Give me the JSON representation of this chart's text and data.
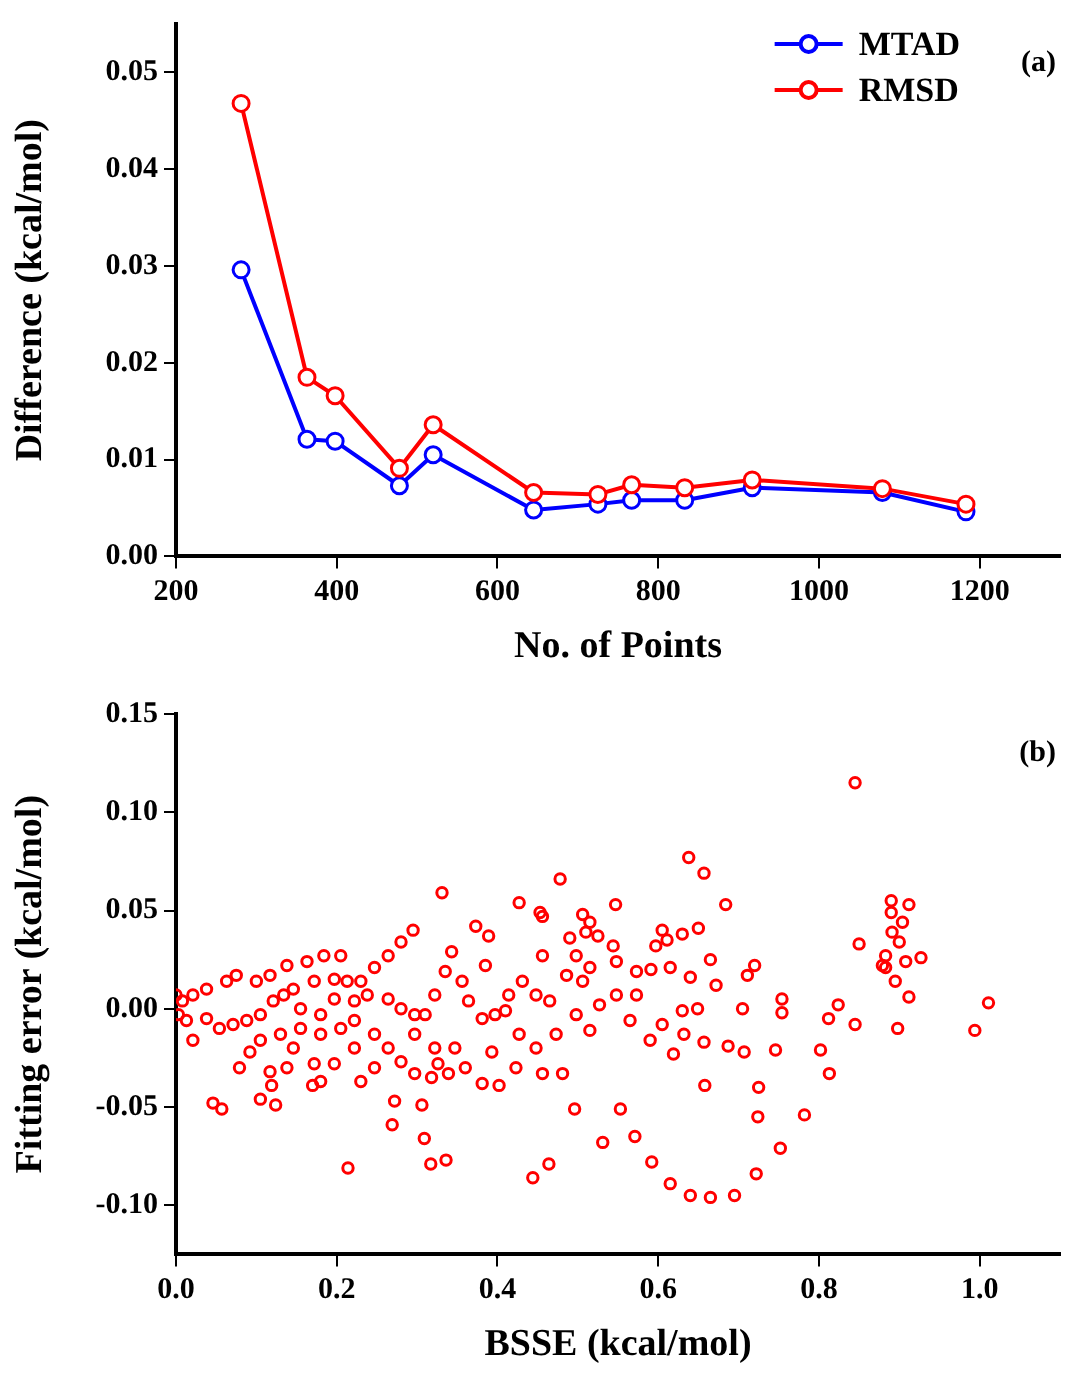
{
  "chart_data": [
    {
      "type": "line",
      "xlabel": "No. of Points",
      "ylabel": "Difference (kcal/mol)",
      "annotations": [
        "(a)"
      ],
      "x": [
        281,
        363,
        398,
        478,
        520,
        645,
        725,
        767,
        833,
        917,
        1079,
        1183
      ],
      "series": [
        {
          "name": "MTAD",
          "color": "#0000ff",
          "values": [
            0.0296,
            0.0121,
            0.0119,
            0.0073,
            0.0105,
            0.0048,
            0.0054,
            0.0058,
            0.0058,
            0.0071,
            0.0066,
            0.0046
          ]
        },
        {
          "name": "RMSD",
          "color": "#ff0000",
          "values": [
            0.0468,
            0.0185,
            0.0166,
            0.0091,
            0.0136,
            0.0066,
            0.0064,
            0.0074,
            0.0071,
            0.0079,
            0.007,
            0.0054
          ]
        }
      ],
      "xlim": [
        200,
        1300
      ],
      "xticks": [
        200,
        400,
        600,
        800,
        1000,
        1200
      ],
      "ylim": [
        0,
        0.055
      ],
      "yticks": [
        {
          "value": 0,
          "label": "0.00"
        },
        {
          "value": 0.01,
          "label": "0.01"
        },
        {
          "value": 0.02,
          "label": "0.02"
        },
        {
          "value": 0.03,
          "label": "0.03"
        },
        {
          "value": 0.04,
          "label": "0.04"
        },
        {
          "value": 0.05,
          "label": "0.05"
        }
      ],
      "grid": false,
      "legend": "top right",
      "marker": "circle",
      "line_style": "solid"
    },
    {
      "type": "scatter",
      "xlabel": "BSSE (kcal/mol)",
      "ylabel": "Fitting error (kcal/mol)",
      "annotations": [
        "(b)"
      ],
      "series": [
        {
          "color": "#ff0000",
          "x": [
            0.845,
            0.638,
            0.657,
            0.478,
            0.331,
            0.547,
            0.684,
            0.89,
            0.912,
            0.85,
            0.927,
            1.011,
            0.994,
            0.898,
            0.845,
            0.824,
            0.812,
            0.802,
            0.813,
            0.782,
            0.752,
            0.722,
            0.695,
            0.665,
            0.64,
            0.615,
            0.592,
            0.571,
            0.553,
            0.496,
            0.531,
            0.464,
            0.444,
            0.336,
            0.317,
            0.309,
            0.214,
            0.269,
            0.272,
            0.306,
            0.046,
            0.057,
            0.105,
            0.124,
            0.119,
            0.17,
            0.079,
            0.18,
            0.481,
            0.658,
            0.724,
            0.725,
            0.746,
            0.707,
            0.687,
            0.619,
            0.657,
            0.754,
            0.754,
            0.705,
            0.72,
            0.711,
            0.672,
            0.665,
            0.65,
            0.63,
            0.605,
            0.611,
            0.597,
            0.591,
            0.615,
            0.64,
            0.649,
            0.63,
            0.632,
            0.605,
            0.59,
            0.565,
            0.548,
            0.527,
            0.544,
            0.515,
            0.506,
            0.51,
            0.525,
            0.49,
            0.498,
            0.486,
            0.506,
            0.515,
            0.548,
            0.573,
            0.573,
            0.498,
            0.473,
            0.515,
            0.448,
            0.427,
            0.414,
            0.431,
            0.448,
            0.465,
            0.456,
            0.453,
            0.456,
            0.427,
            0.373,
            0.389,
            0.385,
            0.397,
            0.41,
            0.381,
            0.364,
            0.356,
            0.343,
            0.335,
            0.322,
            0.31,
            0.297,
            0.322,
            0.347,
            0.36,
            0.393,
            0.381,
            0.402,
            0.423,
            0.456,
            0.295,
            0.28,
            0.264,
            0.247,
            0.23,
            0.205,
            0.184,
            0.163,
            0.138,
            0.117,
            0.1,
            0.075,
            0.063,
            0.038,
            0.021,
            0.008,
            0.0,
            0.003,
            0.013,
            0.021,
            0.038,
            0.054,
            0.071,
            0.088,
            0.105,
            0.121,
            0.146,
            0.172,
            0.197,
            0.213,
            0.238,
            0.264,
            0.28,
            0.297,
            0.18,
            0.155,
            0.13,
            0.105,
            0.146,
            0.18,
            0.205,
            0.222,
            0.247,
            0.264,
            0.247,
            0.28,
            0.222,
            0.197,
            0.172,
            0.138,
            0.117,
            0.092,
            0.23,
            0.297,
            0.326,
            0.339,
            0.318,
            0.155,
            0.134,
            0.197,
            0.222,
            0.883,
            0.891,
            0.9,
            0.883,
            0.895,
            0.904,
            0.89,
            0.908,
            0.912,
            0.879
          ],
          "values": [
            0.115,
            0.077,
            0.069,
            0.066,
            0.059,
            0.053,
            0.053,
            0.055,
            0.053,
            0.033,
            0.026,
            0.003,
            -0.011,
            -0.01,
            -0.008,
            0.002,
            -0.005,
            -0.021,
            -0.033,
            -0.054,
            -0.071,
            -0.084,
            -0.095,
            -0.096,
            -0.095,
            -0.089,
            -0.078,
            -0.065,
            -0.051,
            -0.051,
            -0.068,
            -0.079,
            -0.086,
            -0.077,
            -0.079,
            -0.066,
            -0.081,
            -0.059,
            -0.047,
            -0.049,
            -0.048,
            -0.051,
            -0.046,
            -0.049,
            -0.039,
            -0.039,
            -0.03,
            -0.037,
            -0.033,
            -0.039,
            -0.055,
            -0.04,
            -0.021,
            -0.022,
            -0.019,
            -0.023,
            -0.017,
            0.005,
            -0.002,
            0.0,
            0.022,
            0.017,
            0.012,
            0.025,
            0.041,
            0.038,
            0.04,
            0.035,
            0.032,
            0.02,
            0.021,
            0.016,
            0.0,
            -0.001,
            -0.013,
            -0.008,
            -0.016,
            -0.006,
            0.007,
            0.002,
            0.032,
            0.044,
            0.048,
            0.039,
            0.037,
            0.036,
            0.027,
            0.017,
            0.014,
            0.021,
            0.024,
            0.019,
            0.007,
            -0.003,
            -0.013,
            -0.011,
            -0.02,
            -0.013,
            0.007,
            0.014,
            0.007,
            0.004,
            0.027,
            0.049,
            0.047,
            0.054,
            0.042,
            0.037,
            0.022,
            -0.003,
            -0.001,
            -0.005,
            0.004,
            0.014,
            0.029,
            0.019,
            0.007,
            -0.003,
            -0.013,
            -0.02,
            -0.02,
            -0.03,
            -0.022,
            -0.038,
            -0.039,
            -0.03,
            -0.033,
            0.04,
            0.034,
            0.027,
            0.021,
            0.014,
            0.027,
            0.027,
            0.024,
            0.022,
            0.017,
            0.014,
            0.017,
            0.014,
            0.01,
            0.007,
            0.004,
            0.007,
            -0.003,
            -0.006,
            -0.016,
            -0.005,
            -0.01,
            -0.008,
            -0.006,
            -0.003,
            0.004,
            0.01,
            0.014,
            0.015,
            0.014,
            0.007,
            0.005,
            0.0,
            -0.003,
            -0.003,
            -0.01,
            -0.013,
            -0.016,
            -0.02,
            -0.013,
            -0.01,
            -0.006,
            -0.013,
            -0.02,
            -0.03,
            -0.027,
            -0.02,
            -0.028,
            -0.028,
            -0.03,
            -0.032,
            -0.022,
            -0.037,
            -0.033,
            -0.028,
            -0.033,
            -0.035,
            0.0,
            0.007,
            0.005,
            0.004,
            0.027,
            0.039,
            0.034,
            0.021,
            0.014,
            0.044,
            0.049,
            0.024,
            0.006,
            0.022
          ]
        }
      ],
      "xlim": [
        0,
        1.1
      ],
      "xticks": [
        {
          "value": 0,
          "label": "0.0"
        },
        {
          "value": 0.2,
          "label": "0.2"
        },
        {
          "value": 0.4,
          "label": "0.4"
        },
        {
          "value": 0.6,
          "label": "0.6"
        },
        {
          "value": 0.8,
          "label": "0.8"
        },
        {
          "value": 1,
          "label": "1.0"
        }
      ],
      "ylim": [
        -0.125,
        0.15
      ],
      "yticks": [
        {
          "value": -0.1,
          "label": "-0.10"
        },
        {
          "value": -0.05,
          "label": "-0.05"
        },
        {
          "value": 0,
          "label": "0.00"
        },
        {
          "value": 0.05,
          "label": "0.05"
        },
        {
          "value": 0.1,
          "label": "0.10"
        },
        {
          "value": 0.15,
          "label": "0.15"
        }
      ],
      "grid": false,
      "legend": false,
      "marker": "circle"
    }
  ]
}
